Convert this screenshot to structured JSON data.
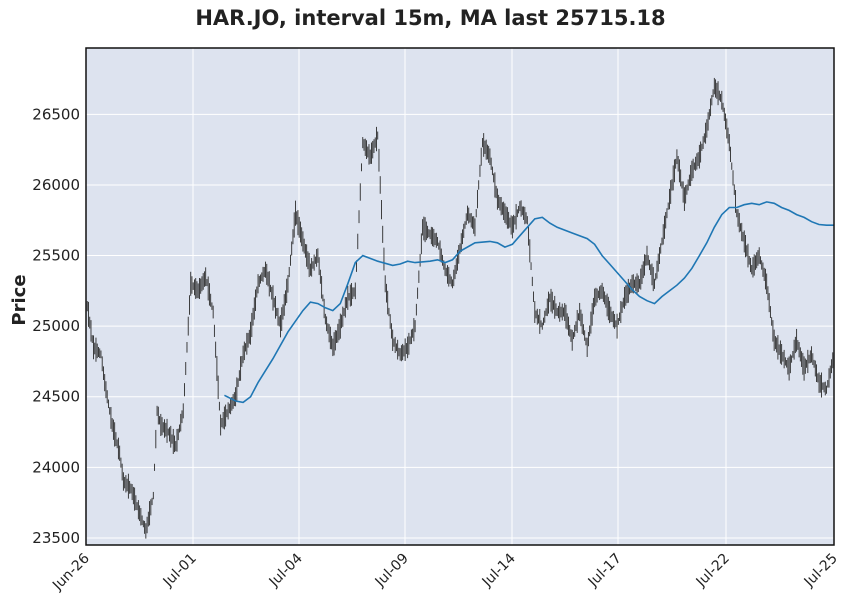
{
  "chart_data": {
    "type": "candlestick",
    "title": "HAR.JO, interval 15m, MA last 25715.18",
    "ylabel": "Price",
    "xlabel": "",
    "ylim": [
      23450,
      26970
    ],
    "grid": true,
    "yticks": [
      23500,
      24000,
      24500,
      25000,
      25500,
      26000,
      26500
    ],
    "xticks": [
      "Jun-26",
      "Jul-01",
      "Jul-04",
      "Jul-09",
      "Jul-14",
      "Jul-17",
      "Jul-22",
      "Jul-25"
    ],
    "colors": {
      "background": "#dde3ef",
      "price": "#2b2b2b",
      "ma": "#1f77b4",
      "grid": "#ffffff"
    },
    "price_series": [
      [
        0.0,
        25200
      ],
      [
        0.01,
        24850
      ],
      [
        0.02,
        24800
      ],
      [
        0.025,
        24600
      ],
      [
        0.035,
        24300
      ],
      [
        0.045,
        24100
      ],
      [
        0.05,
        23900
      ],
      [
        0.06,
        23850
      ],
      [
        0.07,
        23700
      ],
      [
        0.08,
        23550
      ],
      [
        0.09,
        23800
      ],
      [
        0.095,
        24400
      ],
      [
        0.1,
        24300
      ],
      [
        0.11,
        24250
      ],
      [
        0.12,
        24150
      ],
      [
        0.13,
        24400
      ],
      [
        0.14,
        25300
      ],
      [
        0.15,
        25250
      ],
      [
        0.16,
        25350
      ],
      [
        0.17,
        25100
      ],
      [
        0.18,
        24300
      ],
      [
        0.19,
        24400
      ],
      [
        0.2,
        24500
      ],
      [
        0.21,
        24800
      ],
      [
        0.22,
        24950
      ],
      [
        0.23,
        25300
      ],
      [
        0.24,
        25400
      ],
      [
        0.25,
        25200
      ],
      [
        0.26,
        25000
      ],
      [
        0.27,
        25300
      ],
      [
        0.28,
        25800
      ],
      [
        0.29,
        25600
      ],
      [
        0.3,
        25400
      ],
      [
        0.31,
        25500
      ],
      [
        0.32,
        25050
      ],
      [
        0.33,
        24850
      ],
      [
        0.34,
        25000
      ],
      [
        0.35,
        25200
      ],
      [
        0.36,
        25250
      ],
      [
        0.37,
        26300
      ],
      [
        0.38,
        26200
      ],
      [
        0.39,
        26350
      ],
      [
        0.4,
        25300
      ],
      [
        0.41,
        24900
      ],
      [
        0.42,
        24800
      ],
      [
        0.43,
        24850
      ],
      [
        0.44,
        25000
      ],
      [
        0.45,
        25700
      ],
      [
        0.46,
        25650
      ],
      [
        0.47,
        25600
      ],
      [
        0.48,
        25400
      ],
      [
        0.49,
        25300
      ],
      [
        0.5,
        25550
      ],
      [
        0.51,
        25800
      ],
      [
        0.52,
        25700
      ],
      [
        0.53,
        26300
      ],
      [
        0.54,
        26200
      ],
      [
        0.55,
        25900
      ],
      [
        0.56,
        25800
      ],
      [
        0.57,
        25700
      ],
      [
        0.58,
        25850
      ],
      [
        0.59,
        25750
      ],
      [
        0.6,
        25100
      ],
      [
        0.61,
        25000
      ],
      [
        0.62,
        25200
      ],
      [
        0.63,
        25100
      ],
      [
        0.64,
        25100
      ],
      [
        0.65,
        24900
      ],
      [
        0.66,
        25100
      ],
      [
        0.67,
        24850
      ],
      [
        0.68,
        25200
      ],
      [
        0.69,
        25250
      ],
      [
        0.7,
        25100
      ],
      [
        0.71,
        25000
      ],
      [
        0.72,
        25200
      ],
      [
        0.73,
        25300
      ],
      [
        0.74,
        25300
      ],
      [
        0.75,
        25500
      ],
      [
        0.76,
        25300
      ],
      [
        0.77,
        25600
      ],
      [
        0.78,
        25900
      ],
      [
        0.79,
        26200
      ],
      [
        0.8,
        25900
      ],
      [
        0.81,
        26100
      ],
      [
        0.82,
        26200
      ],
      [
        0.83,
        26400
      ],
      [
        0.84,
        26700
      ],
      [
        0.85,
        26600
      ],
      [
        0.86,
        26300
      ],
      [
        0.87,
        25800
      ],
      [
        0.88,
        25600
      ],
      [
        0.89,
        25400
      ],
      [
        0.9,
        25500
      ],
      [
        0.91,
        25300
      ],
      [
        0.92,
        24900
      ],
      [
        0.93,
        24800
      ],
      [
        0.94,
        24700
      ],
      [
        0.95,
        24900
      ],
      [
        0.96,
        24700
      ],
      [
        0.97,
        24800
      ],
      [
        0.98,
        24600
      ],
      [
        0.99,
        24550
      ],
      [
        1.0,
        24800
      ]
    ],
    "ma_series": [
      [
        0.185,
        24510
      ],
      [
        0.2,
        24470
      ],
      [
        0.21,
        24460
      ],
      [
        0.22,
        24500
      ],
      [
        0.23,
        24600
      ],
      [
        0.25,
        24770
      ],
      [
        0.27,
        24960
      ],
      [
        0.29,
        25110
      ],
      [
        0.3,
        25170
      ],
      [
        0.31,
        25160
      ],
      [
        0.32,
        25130
      ],
      [
        0.33,
        25110
      ],
      [
        0.34,
        25160
      ],
      [
        0.35,
        25300
      ],
      [
        0.36,
        25450
      ],
      [
        0.37,
        25500
      ],
      [
        0.38,
        25480
      ],
      [
        0.39,
        25460
      ],
      [
        0.41,
        25430
      ],
      [
        0.42,
        25440
      ],
      [
        0.43,
        25460
      ],
      [
        0.44,
        25450
      ],
      [
        0.46,
        25460
      ],
      [
        0.47,
        25470
      ],
      [
        0.48,
        25450
      ],
      [
        0.49,
        25470
      ],
      [
        0.5,
        25530
      ],
      [
        0.52,
        25590
      ],
      [
        0.54,
        25600
      ],
      [
        0.55,
        25590
      ],
      [
        0.56,
        25560
      ],
      [
        0.57,
        25580
      ],
      [
        0.58,
        25640
      ],
      [
        0.59,
        25700
      ],
      [
        0.6,
        25760
      ],
      [
        0.61,
        25770
      ],
      [
        0.62,
        25730
      ],
      [
        0.63,
        25700
      ],
      [
        0.65,
        25660
      ],
      [
        0.67,
        25620
      ],
      [
        0.68,
        25580
      ],
      [
        0.69,
        25500
      ],
      [
        0.7,
        25440
      ],
      [
        0.71,
        25380
      ],
      [
        0.72,
        25320
      ],
      [
        0.73,
        25260
      ],
      [
        0.74,
        25210
      ],
      [
        0.75,
        25180
      ],
      [
        0.76,
        25160
      ],
      [
        0.77,
        25210
      ],
      [
        0.78,
        25250
      ],
      [
        0.79,
        25290
      ],
      [
        0.8,
        25340
      ],
      [
        0.81,
        25410
      ],
      [
        0.82,
        25500
      ],
      [
        0.83,
        25590
      ],
      [
        0.84,
        25700
      ],
      [
        0.85,
        25790
      ],
      [
        0.86,
        25840
      ],
      [
        0.87,
        25840
      ],
      [
        0.88,
        25860
      ],
      [
        0.89,
        25870
      ],
      [
        0.9,
        25860
      ],
      [
        0.91,
        25880
      ],
      [
        0.92,
        25870
      ],
      [
        0.93,
        25840
      ],
      [
        0.94,
        25820
      ],
      [
        0.95,
        25790
      ],
      [
        0.96,
        25770
      ],
      [
        0.97,
        25740
      ],
      [
        0.98,
        25720
      ],
      [
        0.99,
        25715
      ],
      [
        1.0,
        25715
      ]
    ]
  }
}
